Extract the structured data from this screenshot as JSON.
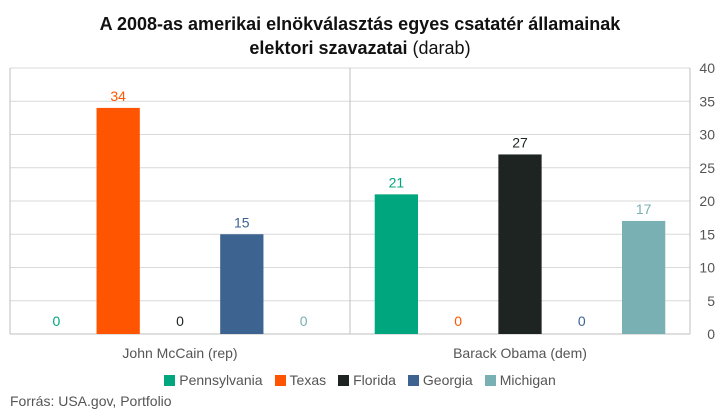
{
  "title": {
    "main": "A 2008-as amerikai elnökválasztás egyes csatatér államainak",
    "line2_bold": "elektori szavazatai",
    "unit": "(darab)"
  },
  "source": "Forrás: USA.gov, Portfolio",
  "colors": {
    "Pennsylvania": "#00a67e",
    "Texas": "#ff5500",
    "Florida": "#1d2421",
    "Georgia": "#3d6390",
    "Michigan": "#79b0b3"
  },
  "chart_data": {
    "type": "bar",
    "title": "A 2008-as amerikai elnökválasztás egyes csatatér államainak elektori szavazatai (darab)",
    "categories": [
      "John McCain (rep)",
      "Barack Obama (dem)"
    ],
    "series": [
      {
        "name": "Pennsylvania",
        "values": [
          0,
          21
        ]
      },
      {
        "name": "Texas",
        "values": [
          34,
          0
        ]
      },
      {
        "name": "Florida",
        "values": [
          0,
          27
        ]
      },
      {
        "name": "Georgia",
        "values": [
          15,
          0
        ]
      },
      {
        "name": "Michigan",
        "values": [
          0,
          17
        ]
      }
    ],
    "ylim": [
      0,
      40
    ],
    "yticks": [
      0,
      5,
      10,
      15,
      20,
      25,
      30,
      35,
      40
    ],
    "y_axis_side": "right",
    "grid": true,
    "legend": "bottom",
    "data_labels": true
  }
}
